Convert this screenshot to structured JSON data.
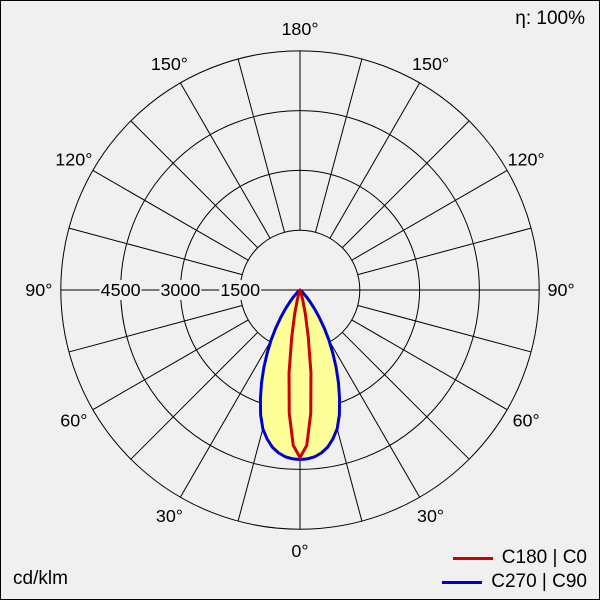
{
  "chart_data": {
    "type": "polar-line",
    "unit": "cd/klm",
    "efficiency": "η: 100%",
    "rmax": 6000,
    "ring_values": [
      1500,
      3000,
      4500,
      6000
    ],
    "radial_tick_labels": [
      {
        "value": 1500,
        "label": "1500"
      },
      {
        "value": 3000,
        "label": "3000"
      },
      {
        "value": 4500,
        "label": "4500"
      }
    ],
    "angle_labels": [
      {
        "angle": 0,
        "label": "0°"
      },
      {
        "angle": 30,
        "label": "30°"
      },
      {
        "angle": 60,
        "label": "60°"
      },
      {
        "angle": 90,
        "label": "90°"
      },
      {
        "angle": 120,
        "label": "120°"
      },
      {
        "angle": 150,
        "label": "150°"
      },
      {
        "angle": 180,
        "label": "180°"
      }
    ],
    "grid_step_deg": 15,
    "fill_color": "#ffff99",
    "background": "#f0f0f0",
    "grid_color": "#000000",
    "series": [
      {
        "name": "C180 | C0",
        "color": "#cc0000",
        "gamma": [
          0,
          2.5,
          5,
          7.5,
          10,
          12.5,
          15,
          17.5,
          20,
          22.5,
          25,
          30,
          35,
          45,
          90
        ],
        "values": [
          4200,
          3900,
          3100,
          2100,
          1200,
          620,
          280,
          130,
          60,
          35,
          22,
          8,
          3,
          0,
          0
        ]
      },
      {
        "name": "C270 | C90",
        "color": "#0000cc",
        "gamma": [
          0,
          2.5,
          5,
          7.5,
          10,
          12.5,
          15,
          17.5,
          20,
          22.5,
          25,
          27.5,
          30,
          32.5,
          35,
          37.5,
          40,
          42.5,
          45,
          47.5,
          50,
          52.5,
          55,
          57.5,
          60,
          65,
          70,
          80,
          90
        ],
        "values": [
          4250,
          4240,
          4200,
          4120,
          4000,
          3820,
          3600,
          3280,
          2900,
          2520,
          2150,
          1780,
          1450,
          1130,
          850,
          610,
          420,
          280,
          170,
          100,
          60,
          35,
          20,
          12,
          8,
          3,
          1,
          0,
          0
        ]
      }
    ]
  }
}
